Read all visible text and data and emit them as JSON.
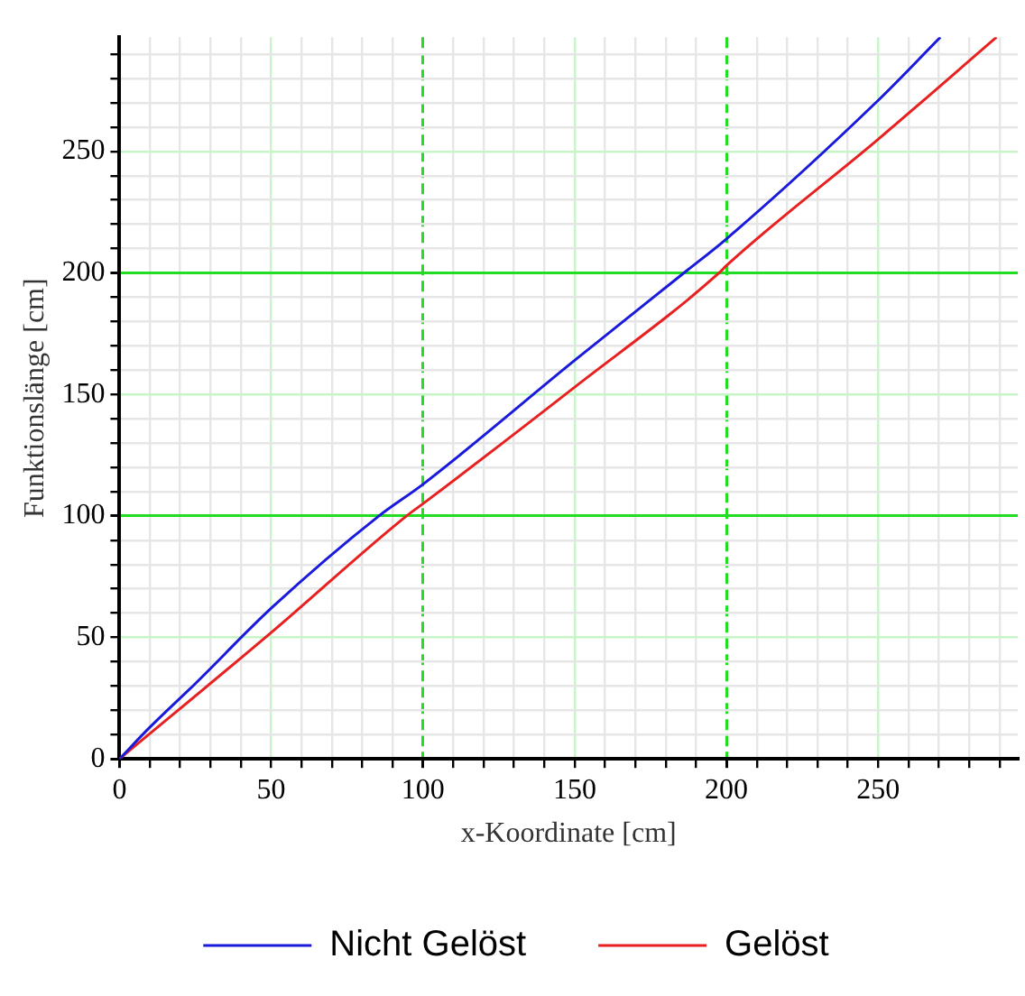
{
  "chart_data": {
    "type": "line",
    "xlabel": "x-Koordinate [cm]",
    "ylabel": "Funktionslänge [cm]",
    "xlim": [
      0,
      296
    ],
    "ylim": [
      0,
      297
    ],
    "xticks": [
      0,
      {
        "value": 10,
        "label": null
      },
      {
        "value": 20,
        "label": null
      },
      {
        "value": 30,
        "label": null
      },
      {
        "value": 40,
        "label": null
      },
      50,
      {
        "value": 60,
        "label": null
      },
      {
        "value": 70,
        "label": null
      },
      {
        "value": 80,
        "label": null
      },
      {
        "value": 90,
        "label": null
      },
      100,
      {
        "value": 110,
        "label": null
      },
      {
        "value": 120,
        "label": null
      },
      {
        "value": 130,
        "label": null
      },
      {
        "value": 140,
        "label": null
      },
      150,
      {
        "value": 160,
        "label": null
      },
      {
        "value": 170,
        "label": null
      },
      {
        "value": 180,
        "label": null
      },
      {
        "value": 190,
        "label": null
      },
      200,
      {
        "value": 210,
        "label": null
      },
      {
        "value": 220,
        "label": null
      },
      {
        "value": 230,
        "label": null
      },
      {
        "value": 240,
        "label": null
      },
      250,
      {
        "value": 260,
        "label": null
      },
      {
        "value": 270,
        "label": null
      },
      {
        "value": 280,
        "label": null
      },
      {
        "value": 290,
        "label": null
      }
    ],
    "yticks": [
      0,
      {
        "value": 10,
        "label": null
      },
      {
        "value": 20,
        "label": null
      },
      {
        "value": 30,
        "label": null
      },
      {
        "value": 40,
        "label": null
      },
      50,
      {
        "value": 60,
        "label": null
      },
      {
        "value": 70,
        "label": null
      },
      {
        "value": 80,
        "label": null
      },
      {
        "value": 90,
        "label": null
      },
      100,
      {
        "value": 110,
        "label": null
      },
      {
        "value": 120,
        "label": null
      },
      {
        "value": 130,
        "label": null
      },
      {
        "value": 140,
        "label": null
      },
      150,
      {
        "value": 160,
        "label": null
      },
      {
        "value": 170,
        "label": null
      },
      {
        "value": 180,
        "label": null
      },
      {
        "value": 190,
        "label": null
      },
      200,
      {
        "value": 210,
        "label": null
      },
      {
        "value": 220,
        "label": null
      },
      {
        "value": 230,
        "label": null
      },
      {
        "value": 240,
        "label": null
      },
      250,
      {
        "value": 260,
        "label": null
      },
      {
        "value": 270,
        "label": null
      },
      {
        "value": 280,
        "label": null
      },
      {
        "value": 290,
        "label": null
      }
    ],
    "grid": true,
    "legend": "bottom",
    "marker": "none",
    "line_style": "solid",
    "series": [
      {
        "name": "Nicht Gelöst",
        "color": "#1a1adc",
        "x": [
          0,
          10,
          25,
          50,
          85.5,
          100,
          150,
          186,
          200,
          250,
          270.5
        ],
        "values": [
          0,
          13,
          31,
          62,
          100,
          113,
          164,
          200,
          214,
          271,
          297
        ]
      },
      {
        "name": "Gelöst",
        "color": "#e82020",
        "x": [
          0,
          50,
          94.6,
          100,
          150,
          197.6,
          200,
          250,
          289
        ],
        "values": [
          0,
          52,
          100,
          105,
          153,
          200,
          203,
          255,
          297
        ]
      }
    ]
  }
}
